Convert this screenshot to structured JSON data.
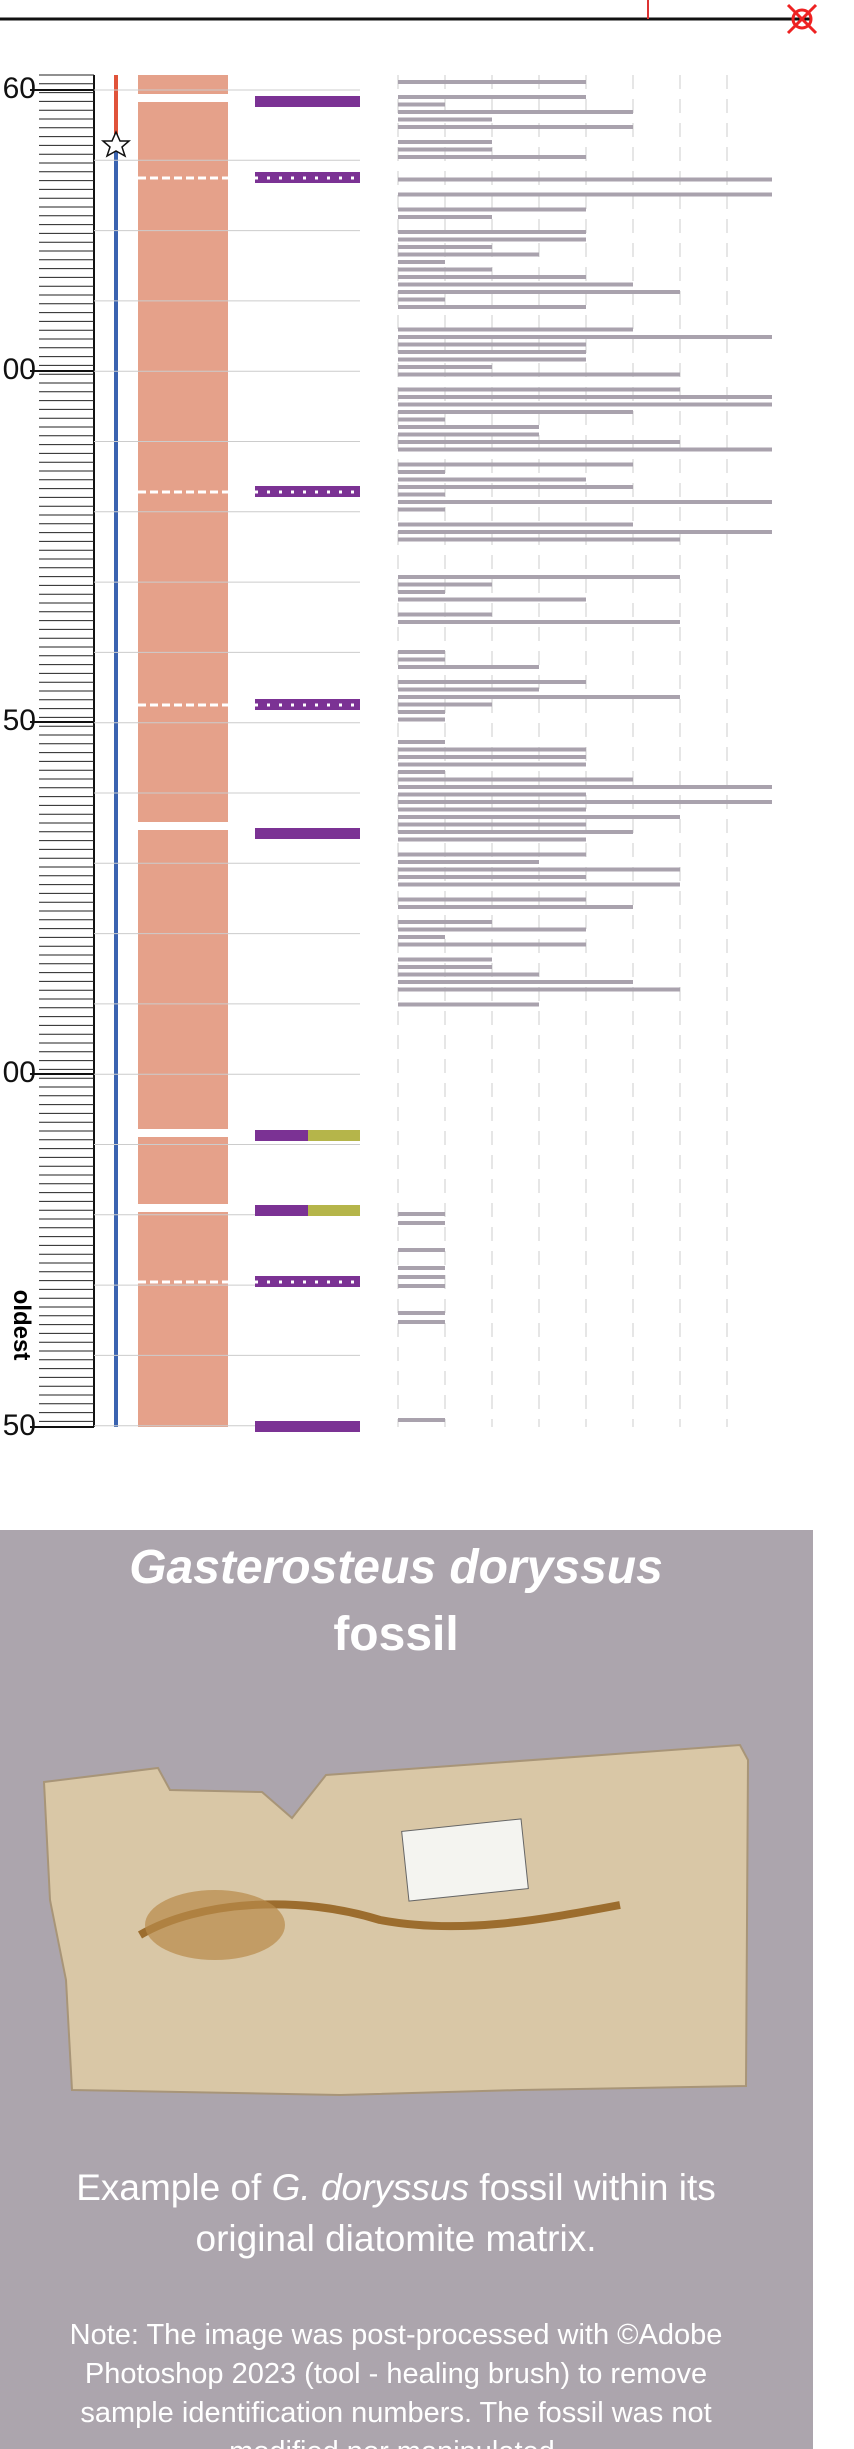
{
  "axis": {
    "labels": [
      "60",
      "00",
      "50",
      "00",
      "50"
    ],
    "end_label": "oldest"
  },
  "panel": {
    "title_species": "Gasterosteus doryssus",
    "title_word": "fossil",
    "caption_start": "Example of ",
    "caption_species": "G. doryssus",
    "caption_end": " fossil within its",
    "caption_line2": "original diatomite matrix.",
    "note": [
      "Note: The image was post-processed with ©Adobe",
      "Photoshop 2023 (tool - healing brush) to remove",
      "sample identification numbers. The fossil was not",
      "modified nor manipulated."
    ]
  }
}
